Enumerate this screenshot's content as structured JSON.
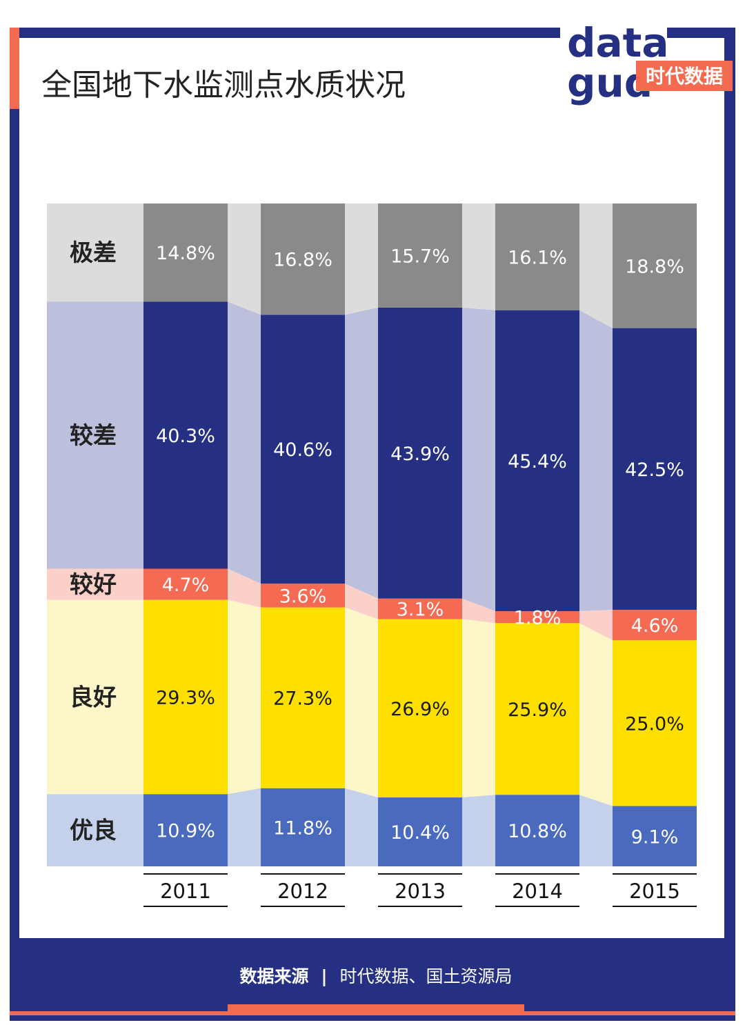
{
  "title": "全国地下水监测点水质状况",
  "logo": {
    "word_top": "data",
    "word_bottom": "gud",
    "tag": "时代数据"
  },
  "footer": {
    "label": "数据来源",
    "separator": "|",
    "source": "时代数据、国土资源局"
  },
  "colors": {
    "frame": "#253083",
    "accent": "#f26a4f",
    "excellent": "#4a6bbd",
    "good": "#fde000",
    "fair": "#f46a52",
    "poor": "#253083",
    "very_poor": "#8a8a8a"
  },
  "chart_data": {
    "type": "bar",
    "stacked": true,
    "normalized": true,
    "categories": [
      "2011",
      "2012",
      "2013",
      "2014",
      "2015"
    ],
    "series": [
      {
        "name": "优良",
        "values": [
          10.9,
          11.8,
          10.4,
          10.8,
          9.1
        ],
        "labels": [
          "10.9%",
          "11.8%",
          "10.4%",
          "10.8%",
          "9.1%"
        ]
      },
      {
        "name": "良好",
        "values": [
          29.3,
          27.3,
          26.9,
          25.9,
          25.0
        ],
        "labels": [
          "29.3%",
          "27.3%",
          "26.9%",
          "25.9%",
          "25.0%"
        ]
      },
      {
        "name": "较好",
        "values": [
          4.7,
          3.6,
          3.1,
          1.8,
          4.6
        ],
        "labels": [
          "4.7%",
          "3.6%",
          "3.1%",
          "1.8%",
          "4.6%"
        ]
      },
      {
        "name": "较差",
        "values": [
          40.3,
          40.6,
          43.9,
          45.4,
          42.5
        ],
        "labels": [
          "40.3%",
          "40.6%",
          "43.9%",
          "45.4%",
          "42.5%"
        ]
      },
      {
        "name": "极差",
        "values": [
          14.8,
          16.8,
          15.7,
          16.1,
          18.8
        ],
        "labels": [
          "14.8%",
          "16.8%",
          "15.7%",
          "16.1%",
          "18.8%"
        ]
      }
    ],
    "ylim": [
      0,
      100
    ],
    "grid": false,
    "legend": "left"
  }
}
